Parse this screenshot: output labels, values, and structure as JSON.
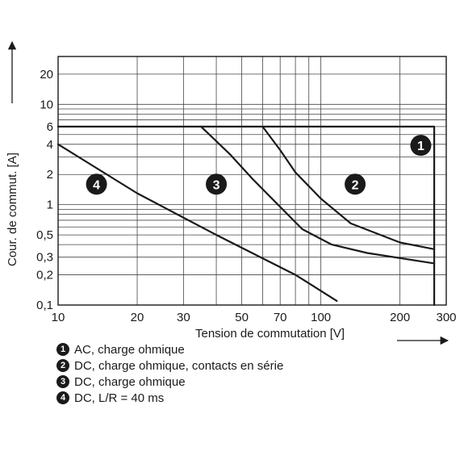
{
  "chart_data": {
    "type": "line",
    "x_scale": "log",
    "y_scale": "log",
    "xlim": [
      10,
      300
    ],
    "ylim": [
      0.1,
      30
    ],
    "xlabel": "Tension de commutation [V]",
    "ylabel": "Cour. de commut. [A]",
    "x_ticks": [
      10,
      20,
      30,
      50,
      70,
      100,
      200,
      300
    ],
    "y_ticks": [
      0.1,
      0.2,
      0.3,
      0.5,
      1,
      2,
      4,
      6,
      10,
      20
    ],
    "grid": true,
    "legend_position": "below",
    "series": [
      {
        "name": "1",
        "x": [
          10,
          270,
          270,
          270
        ],
        "y": [
          6,
          6,
          6,
          0.1
        ]
      },
      {
        "name": "2",
        "x": [
          60,
          70,
          80,
          100,
          130,
          200,
          270
        ],
        "y": [
          6,
          3.5,
          2.1,
          1.15,
          0.65,
          0.42,
          0.36
        ]
      },
      {
        "name": "3",
        "x": [
          35,
          45,
          55,
          70,
          85,
          110,
          150,
          270
        ],
        "y": [
          6,
          3.2,
          1.8,
          0.95,
          0.57,
          0.4,
          0.33,
          0.26
        ]
      },
      {
        "name": "4",
        "x": [
          10,
          20,
          40,
          80,
          115
        ],
        "y": [
          4,
          1.3,
          0.5,
          0.2,
          0.11
        ]
      }
    ],
    "markers": [
      {
        "label": "1",
        "x": 240,
        "y": 3.9
      },
      {
        "label": "2",
        "x": 135,
        "y": 1.6
      },
      {
        "label": "3",
        "x": 40,
        "y": 1.6
      },
      {
        "label": "4",
        "x": 14,
        "y": 1.6
      }
    ],
    "legend": [
      {
        "num": "1",
        "text": "AC, charge ohmique"
      },
      {
        "num": "2",
        "text": "DC, charge ohmique, contacts en série"
      },
      {
        "num": "3",
        "text": "DC, charge ohmique"
      },
      {
        "num": "4",
        "text": "DC, L/R = 40 ms"
      }
    ]
  }
}
